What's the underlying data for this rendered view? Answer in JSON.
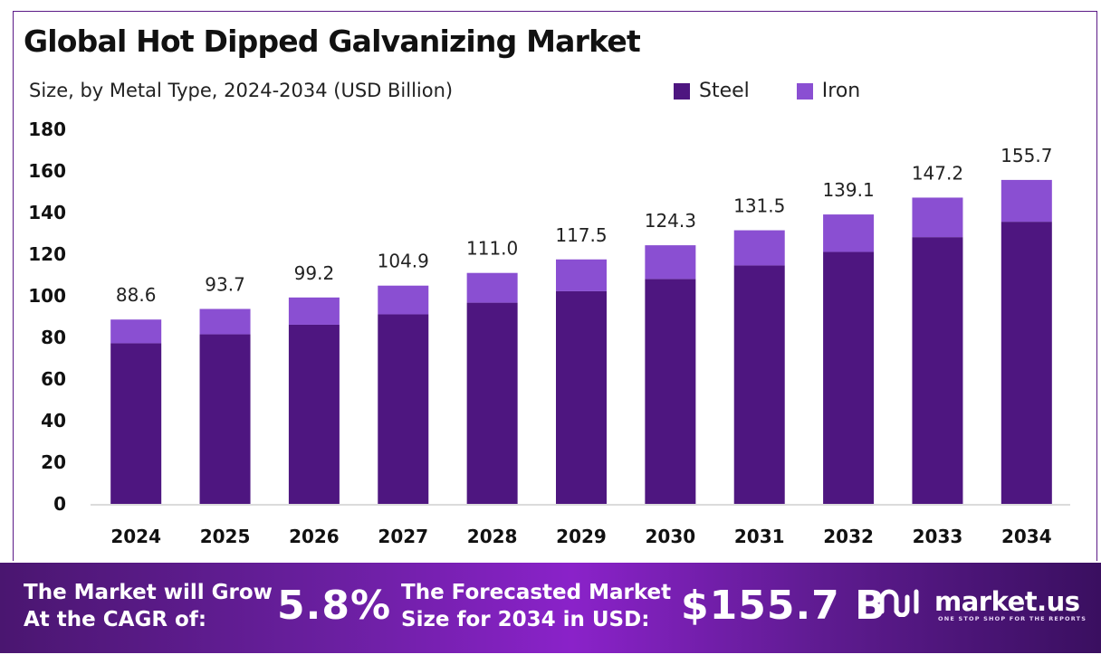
{
  "chart_data": {
    "type": "bar",
    "stacked": true,
    "title": "Global Hot Dipped Galvanizing Market",
    "subtitle": "Size, by Metal Type, 2024-2034 (USD Billion)",
    "categories": [
      "2024",
      "2025",
      "2026",
      "2027",
      "2028",
      "2029",
      "2030",
      "2031",
      "2032",
      "2033",
      "2034"
    ],
    "series": [
      {
        "name": "Steel",
        "color": "#4e1680",
        "values": [
          77.2,
          81.5,
          86.1,
          91.1,
          96.7,
          102.2,
          108.1,
          114.6,
          121.1,
          128.2,
          135.6
        ]
      },
      {
        "name": "Iron",
        "color": "#8a4fd2",
        "values": [
          11.4,
          12.2,
          13.1,
          13.8,
          14.3,
          15.3,
          16.2,
          16.9,
          18.0,
          19.0,
          20.1
        ]
      }
    ],
    "totals": [
      "88.6",
      "93.7",
      "99.2",
      "104.9",
      "111.0",
      "117.5",
      "124.3",
      "131.5",
      "139.1",
      "147.2",
      "155.7"
    ],
    "ylim": [
      0,
      180
    ],
    "yticks": [
      "0",
      "20",
      "40",
      "60",
      "80",
      "100",
      "120",
      "140",
      "160",
      "180"
    ],
    "grid": false,
    "legend_position": "top-right"
  },
  "banner": {
    "cagr_label_line1": "The Market will Grow",
    "cagr_label_line2": "At the CAGR of:",
    "cagr_value": "5.8%",
    "forecast_label_line1": "The Forecasted Market",
    "forecast_label_line2": "Size for 2034 in USD:",
    "forecast_value": "$155.7 B",
    "brand_name": "market.us",
    "brand_tagline": "ONE STOP SHOP FOR THE REPORTS"
  },
  "colors": {
    "steel": "#4e1680",
    "iron": "#8a4fd2",
    "frame": "#5b1a87"
  }
}
